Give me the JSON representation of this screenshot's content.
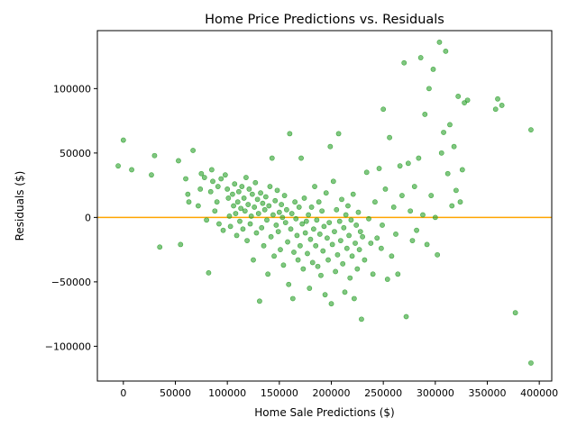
{
  "chart_data": {
    "type": "scatter",
    "title": "Home Price Predictions vs. Residuals",
    "xlabel": "Home Sale Predictions ($)",
    "ylabel": "Residuals ($)",
    "xlim": [
      -25000,
      412000
    ],
    "ylim": [
      -127000,
      145000
    ],
    "xticks": [
      0,
      50000,
      100000,
      150000,
      200000,
      250000,
      300000,
      350000,
      400000
    ],
    "yticks": [
      -100000,
      -50000,
      0,
      50000,
      100000
    ],
    "grid": false,
    "legend": "none",
    "reference_line": {
      "y": 0,
      "color": "#ffa500"
    },
    "point_color": "#2ca02c",
    "series": [
      {
        "points": [
          [
            -5000,
            40000
          ],
          [
            0,
            60000
          ],
          [
            8000,
            37000
          ],
          [
            27000,
            33000
          ],
          [
            30000,
            48000
          ],
          [
            35000,
            -23000
          ],
          [
            53000,
            44000
          ],
          [
            55000,
            -21000
          ],
          [
            60000,
            30000
          ],
          [
            62000,
            18000
          ],
          [
            63000,
            12000
          ],
          [
            67000,
            52000
          ],
          [
            72000,
            9000
          ],
          [
            74000,
            22000
          ],
          [
            75000,
            34000
          ],
          [
            78000,
            31000
          ],
          [
            80000,
            -2000
          ],
          [
            82000,
            -43000
          ],
          [
            84000,
            20000
          ],
          [
            85000,
            37000
          ],
          [
            86000,
            28000
          ],
          [
            88000,
            5000
          ],
          [
            90000,
            12000
          ],
          [
            91000,
            24000
          ],
          [
            92000,
            -5000
          ],
          [
            94000,
            30000
          ],
          [
            96000,
            -10000
          ],
          [
            98000,
            33000
          ],
          [
            100000,
            22000
          ],
          [
            101000,
            15000
          ],
          [
            102000,
            1000
          ],
          [
            103000,
            -7000
          ],
          [
            105000,
            18000
          ],
          [
            106000,
            9000
          ],
          [
            107000,
            26000
          ],
          [
            108000,
            3000
          ],
          [
            109000,
            -14000
          ],
          [
            110000,
            12000
          ],
          [
            111000,
            20000
          ],
          [
            112000,
            -3000
          ],
          [
            113000,
            7000
          ],
          [
            114000,
            24000
          ],
          [
            115000,
            -9000
          ],
          [
            116000,
            15000
          ],
          [
            117000,
            5000
          ],
          [
            118000,
            31000
          ],
          [
            119000,
            -18000
          ],
          [
            120000,
            10000
          ],
          [
            121000,
            22000
          ],
          [
            122000,
            -5000
          ],
          [
            123000,
            1000
          ],
          [
            124000,
            18000
          ],
          [
            125000,
            -33000
          ],
          [
            126000,
            8000
          ],
          [
            127000,
            27000
          ],
          [
            128000,
            -12000
          ],
          [
            129000,
            14000
          ],
          [
            130000,
            3000
          ],
          [
            131000,
            -65000
          ],
          [
            132000,
            19000
          ],
          [
            133000,
            -8000
          ],
          [
            134000,
            11000
          ],
          [
            135000,
            -22000
          ],
          [
            136000,
            6000
          ],
          [
            137000,
            16000
          ],
          [
            138000,
            -2000
          ],
          [
            139000,
            -44000
          ],
          [
            140000,
            9000
          ],
          [
            141000,
            24000
          ],
          [
            142000,
            -15000
          ],
          [
            143000,
            46000
          ],
          [
            144000,
            2000
          ],
          [
            145000,
            -30000
          ],
          [
            146000,
            13000
          ],
          [
            147000,
            -6000
          ],
          [
            148000,
            21000
          ],
          [
            149000,
            -11000
          ],
          [
            150000,
            4000
          ],
          [
            151000,
            -25000
          ],
          [
            152000,
            10000
          ],
          [
            153000,
            0
          ],
          [
            154000,
            -37000
          ],
          [
            155000,
            17000
          ],
          [
            156000,
            -4000
          ],
          [
            157000,
            6000
          ],
          [
            158000,
            -19000
          ],
          [
            159000,
            -52000
          ],
          [
            160000,
            65000
          ],
          [
            161000,
            -9000
          ],
          [
            162000,
            3000
          ],
          [
            163000,
            -63000
          ],
          [
            164000,
            -27000
          ],
          [
            165000,
            12000
          ],
          [
            166000,
            -1000
          ],
          [
            167000,
            -14000
          ],
          [
            168000,
            -33000
          ],
          [
            169000,
            8000
          ],
          [
            170000,
            -22000
          ],
          [
            171000,
            46000
          ],
          [
            172000,
            -5000
          ],
          [
            173000,
            -40000
          ],
          [
            174000,
            15000
          ],
          [
            175000,
            -12000
          ],
          [
            176000,
            -3000
          ],
          [
            177000,
            -28000
          ],
          [
            178000,
            2000
          ],
          [
            179000,
            -55000
          ],
          [
            180000,
            -17000
          ],
          [
            181000,
            8000
          ],
          [
            182000,
            -35000
          ],
          [
            183000,
            -9000
          ],
          [
            184000,
            24000
          ],
          [
            185000,
            -22000
          ],
          [
            186000,
            -2000
          ],
          [
            187000,
            -38000
          ],
          [
            188000,
            12000
          ],
          [
            189000,
            -13000
          ],
          [
            190000,
            -45000
          ],
          [
            191000,
            5000
          ],
          [
            192000,
            -26000
          ],
          [
            193000,
            -7000
          ],
          [
            194000,
            -60000
          ],
          [
            195000,
            19000
          ],
          [
            196000,
            -16000
          ],
          [
            197000,
            -33000
          ],
          [
            198000,
            -4000
          ],
          [
            199000,
            55000
          ],
          [
            200000,
            -67000
          ],
          [
            201000,
            -21000
          ],
          [
            202000,
            28000
          ],
          [
            203000,
            -11000
          ],
          [
            204000,
            -42000
          ],
          [
            205000,
            6000
          ],
          [
            206000,
            -29000
          ],
          [
            207000,
            65000
          ],
          [
            208000,
            -3000
          ],
          [
            209000,
            -18000
          ],
          [
            210000,
            14000
          ],
          [
            211000,
            -36000
          ],
          [
            212000,
            -8000
          ],
          [
            213000,
            -58000
          ],
          [
            214000,
            2000
          ],
          [
            215000,
            -24000
          ],
          [
            216000,
            9000
          ],
          [
            217000,
            -14000
          ],
          [
            218000,
            -47000
          ],
          [
            219000,
            -2000
          ],
          [
            220000,
            -30000
          ],
          [
            221000,
            18000
          ],
          [
            222000,
            -63000
          ],
          [
            223000,
            -20000
          ],
          [
            224000,
            -6000
          ],
          [
            225000,
            -40000
          ],
          [
            226000,
            4000
          ],
          [
            227000,
            -25000
          ],
          [
            228000,
            -11000
          ],
          [
            229000,
            -79000
          ],
          [
            230000,
            -15000
          ],
          [
            232000,
            -33000
          ],
          [
            234000,
            35000
          ],
          [
            236000,
            -1000
          ],
          [
            238000,
            -20000
          ],
          [
            240000,
            -44000
          ],
          [
            242000,
            12000
          ],
          [
            244000,
            -16000
          ],
          [
            246000,
            38000
          ],
          [
            248000,
            -24000
          ],
          [
            249000,
            -6000
          ],
          [
            250000,
            84000
          ],
          [
            252000,
            22000
          ],
          [
            254000,
            -48000
          ],
          [
            256000,
            62000
          ],
          [
            258000,
            -30000
          ],
          [
            260000,
            8000
          ],
          [
            262000,
            -13000
          ],
          [
            264000,
            -44000
          ],
          [
            266000,
            40000
          ],
          [
            268000,
            17000
          ],
          [
            270000,
            120000
          ],
          [
            272000,
            -77000
          ],
          [
            274000,
            42000
          ],
          [
            276000,
            5000
          ],
          [
            278000,
            -18000
          ],
          [
            280000,
            24000
          ],
          [
            282000,
            -10000
          ],
          [
            284000,
            46000
          ],
          [
            286000,
            124000
          ],
          [
            288000,
            2000
          ],
          [
            290000,
            80000
          ],
          [
            292000,
            -21000
          ],
          [
            294000,
            100000
          ],
          [
            296000,
            17000
          ],
          [
            298000,
            115000
          ],
          [
            300000,
            0
          ],
          [
            302000,
            -29000
          ],
          [
            304000,
            136000
          ],
          [
            306000,
            50000
          ],
          [
            308000,
            66000
          ],
          [
            310000,
            129000
          ],
          [
            312000,
            34000
          ],
          [
            314000,
            72000
          ],
          [
            316000,
            9000
          ],
          [
            318000,
            55000
          ],
          [
            320000,
            21000
          ],
          [
            322000,
            94000
          ],
          [
            324000,
            12000
          ],
          [
            326000,
            37000
          ],
          [
            328000,
            89000
          ],
          [
            331000,
            91000
          ],
          [
            358000,
            84000
          ],
          [
            360000,
            92000
          ],
          [
            364000,
            87000
          ],
          [
            377000,
            -74000
          ],
          [
            392000,
            68000
          ],
          [
            392000,
            -113000
          ]
        ]
      }
    ]
  }
}
